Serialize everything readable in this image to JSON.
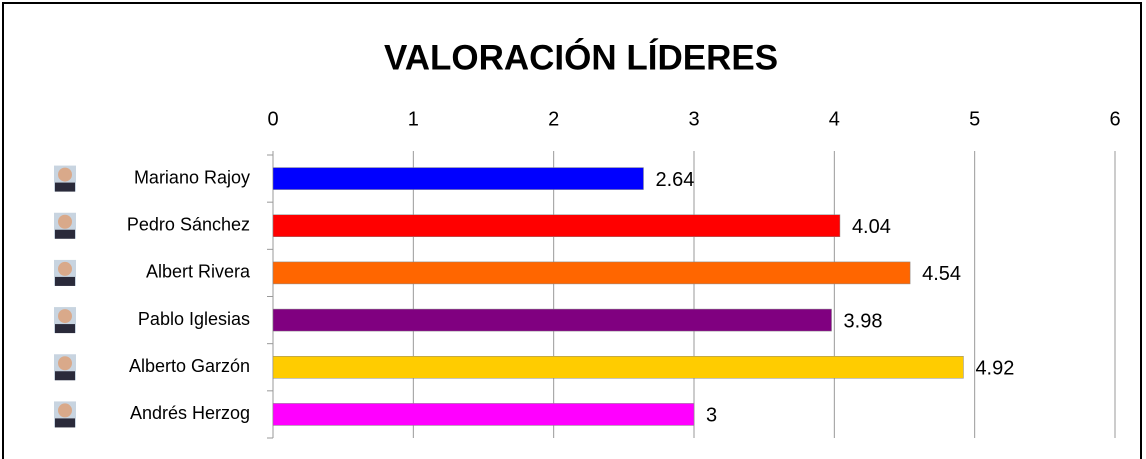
{
  "chart_data": {
    "type": "bar",
    "orientation": "horizontal",
    "title": "VALORACIÓN LÍDERES",
    "categories": [
      "Mariano Rajoy",
      "Pedro Sánchez",
      "Albert Rivera",
      "Pablo Iglesias",
      "Alberto Garzón",
      "Andrés Herzog"
    ],
    "values": [
      2.64,
      4.04,
      4.54,
      3.98,
      4.92,
      3
    ],
    "colors": [
      "#0000ff",
      "#ff0000",
      "#ff6600",
      "#800080",
      "#ffcc00",
      "#ff00ff"
    ],
    "xlim": [
      0,
      6
    ],
    "xticks": [
      0,
      1,
      2,
      3,
      4,
      5,
      6
    ],
    "grid": true
  }
}
